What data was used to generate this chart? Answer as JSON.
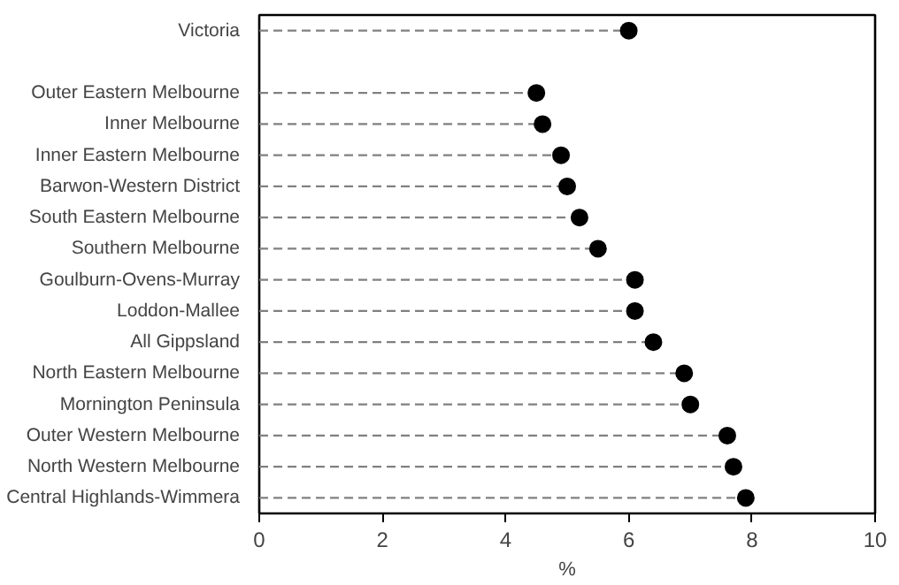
{
  "chart_data": {
    "type": "lollipop",
    "orientation": "horizontal",
    "xlabel": "%",
    "categories": [
      "Victoria",
      null,
      "Outer Eastern Melbourne",
      "Inner Melbourne",
      "Inner Eastern Melbourne",
      "Barwon-Western District",
      "South Eastern Melbourne",
      "Southern Melbourne",
      "Goulburn-Ovens-Murray",
      "Loddon-Mallee",
      "All Gippsland",
      "North Eastern Melbourne",
      "Mornington Peninsula",
      "Outer Western Melbourne",
      "North Western Melbourne",
      "Central Highlands-Wimmera"
    ],
    "values": [
      6.0,
      null,
      4.5,
      4.6,
      4.9,
      5.0,
      5.2,
      5.5,
      6.1,
      6.1,
      6.4,
      6.9,
      7.0,
      7.6,
      7.7,
      7.9
    ],
    "color": "#000000",
    "line_style": "dashed",
    "marker": "circle",
    "xlim": [
      0,
      10
    ],
    "xticks": [
      0,
      2,
      4,
      6,
      8,
      10
    ],
    "grid": false
  }
}
